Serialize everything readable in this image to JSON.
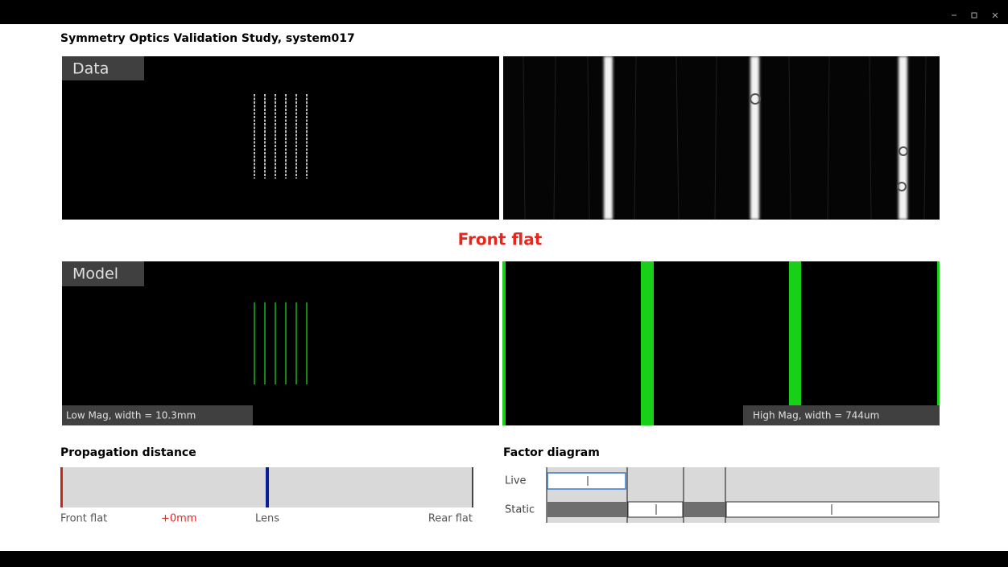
{
  "window_title": "Symmetry Optics Validation Study, system017",
  "data_panel": {
    "label": "Data"
  },
  "status": "Front flat",
  "model_panel": {
    "label": "Model",
    "low_mag": "Low Mag, width = 10.3mm",
    "high_mag": "High Mag, width = 744um"
  },
  "propagation": {
    "title": "Propagation distance",
    "labels": [
      "Front flat",
      "+0mm",
      "Lens",
      "Rear flat"
    ]
  },
  "factor": {
    "title": "Factor diagram",
    "rows": [
      "Live",
      "Static"
    ]
  }
}
